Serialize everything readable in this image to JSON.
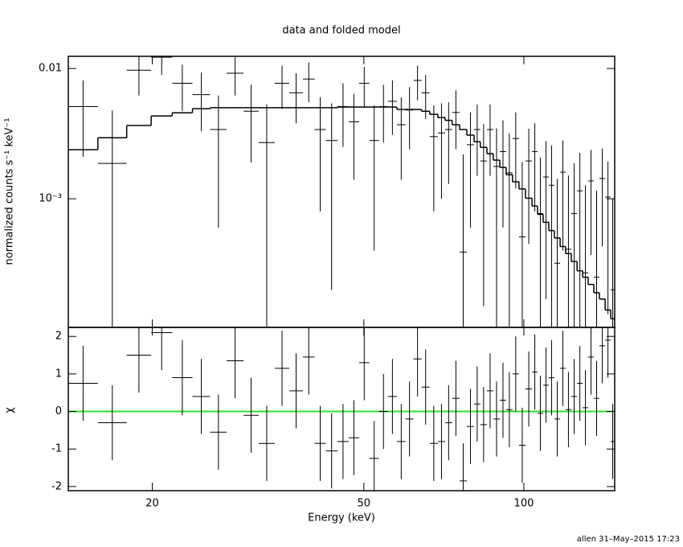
{
  "chart_data": [
    {
      "type": "scatter",
      "title": "data and folded model",
      "ylabel": "normalized counts s⁻¹ keV⁻¹",
      "xlog": true,
      "ylog": true,
      "xlim": [
        13.9,
        148.2
      ],
      "ylim": [
        0.000103,
        0.0124
      ],
      "yticks": [
        {
          "value": 0.01,
          "label": "0.01"
        },
        {
          "value": 0.001,
          "label": "10⁻³"
        }
      ],
      "color": "#000000",
      "model_color": "#000000",
      "bins": [
        13.9,
        15.8,
        17.9,
        19.9,
        21.8,
        23.8,
        25.7,
        27.6,
        29.7,
        31.7,
        34.0,
        36.2,
        38.4,
        40.4,
        42.4,
        44.6,
        46.8,
        49.0,
        51.2,
        53.4,
        55.5,
        57.7,
        59.9,
        62.0,
        64.2,
        66.5,
        68.9,
        71.1,
        73.3,
        75.7,
        78.1,
        80.6,
        82.8,
        85.2,
        87.6,
        90.1,
        92.6,
        95.2,
        97.9,
        100.7,
        103.6,
        106.1,
        108.7,
        111.4,
        114.1,
        117.0,
        119.8,
        122.8,
        125.9,
        129.0,
        132.1,
        135.4,
        138.7,
        142.2,
        145.7,
        148.2
      ],
      "values": [
        0.0051,
        0.00187,
        0.0097,
        0.0122,
        0.0077,
        0.0063,
        0.0034,
        0.0092,
        0.0047,
        0.0027,
        0.0077,
        0.0065,
        0.0083,
        0.0034,
        0.0028,
        0.0051,
        0.0039,
        0.0077,
        0.0028,
        0.0051,
        0.0056,
        0.0037,
        0.0048,
        0.0081,
        0.0065,
        0.003,
        0.0032,
        0.0034,
        0.0046,
        0.00039,
        0.0026,
        0.0034,
        0.00195,
        0.0034,
        0.00177,
        0.0023,
        0.00158,
        0.0029,
        0.00051,
        0.00195,
        0.0023,
        0.00077,
        0.00147,
        0.00127,
        0.00032,
        0.0016,
        0.00041,
        0.00077,
        0.00115,
        0.00027,
        0.00137,
        0.00025,
        0.00143,
        0.00103,
        0.0002
      ],
      "errors": [
        0.003,
        0.0029,
        0.0035,
        0.0033,
        0.003,
        0.003,
        0.0028,
        0.003,
        0.0028,
        0.0026,
        0.0028,
        0.0027,
        0.0028,
        0.0026,
        0.0026,
        0.0026,
        0.0025,
        0.0026,
        0.0024,
        0.0024,
        0.0025,
        0.0023,
        0.0024,
        0.0024,
        0.0024,
        0.0022,
        0.0022,
        0.0021,
        0.0022,
        0.0018,
        0.002,
        0.0019,
        0.0018,
        0.0019,
        0.0017,
        0.0017,
        0.0016,
        0.0017,
        0.0014,
        0.0015,
        0.0015,
        0.0013,
        0.0013,
        0.0013,
        0.0011,
        0.0012,
        0.0011,
        0.0011,
        0.0011,
        0.001,
        0.001,
        0.0009,
        0.001,
        0.0009,
        0.0008
      ],
      "model": [
        0.00238,
        0.00294,
        0.00365,
        0.00432,
        0.00457,
        0.00491,
        0.005,
        0.005,
        0.005,
        0.005,
        0.005,
        0.005,
        0.005,
        0.005,
        0.005,
        0.00506,
        0.00506,
        0.00506,
        0.00506,
        0.00506,
        0.00506,
        0.00485,
        0.00485,
        0.00485,
        0.0047,
        0.00445,
        0.0042,
        0.004,
        0.0037,
        0.0034,
        0.00308,
        0.00274,
        0.00248,
        0.00222,
        0.00198,
        0.00174,
        0.00153,
        0.00135,
        0.00119,
        0.00101,
        0.00088,
        0.00076,
        0.00066,
        0.00057,
        0.0005,
        0.00043,
        0.00038,
        0.00033,
        0.00028,
        0.00025,
        0.00022,
        0.00019,
        0.00017,
        0.00014,
        0.00012
      ]
    },
    {
      "type": "scatter",
      "xlabel": "Energy (keV)",
      "ylabel": "χ",
      "xlog": true,
      "xlim": [
        13.9,
        148.2
      ],
      "ylim": [
        -2.11,
        2.24
      ],
      "xticks": [
        20,
        50,
        100
      ],
      "yticks": [
        -2,
        -1,
        0,
        1,
        2
      ],
      "color": "#000000",
      "zero_line": 0,
      "zero_color": "#33dd33",
      "values": [
        0.75,
        -0.3,
        1.5,
        2.1,
        0.9,
        0.4,
        -0.55,
        1.35,
        -0.1,
        -0.85,
        1.15,
        0.55,
        1.45,
        -0.85,
        -1.05,
        -0.8,
        -0.7,
        1.3,
        -1.25,
        0.0,
        0.4,
        -0.8,
        -0.2,
        1.4,
        0.65,
        -0.85,
        -0.8,
        -0.3,
        0.35,
        -1.85,
        -0.4,
        0.2,
        -0.35,
        0.55,
        -0.2,
        0.3,
        0.05,
        1.0,
        -0.9,
        0.6,
        1.05,
        -0.05,
        0.7,
        0.9,
        -0.2,
        1.15,
        0.05,
        0.4,
        0.75,
        0.1,
        1.45,
        0.35,
        1.75,
        1.9,
        -0.8
      ],
      "errors": [
        1,
        1,
        1,
        1,
        1,
        1,
        1,
        1,
        1,
        1,
        1,
        1,
        1,
        1,
        1,
        1,
        1,
        1,
        1,
        1,
        1,
        1,
        1,
        1,
        1,
        1,
        1,
        1,
        1,
        1,
        1,
        1,
        1,
        1,
        1,
        1,
        1,
        1,
        1,
        1,
        1,
        1,
        1,
        1,
        1,
        1,
        1,
        1,
        1,
        1,
        1,
        1,
        1,
        1,
        1
      ]
    }
  ],
  "footer": "allen 31–May–2015 17:23"
}
